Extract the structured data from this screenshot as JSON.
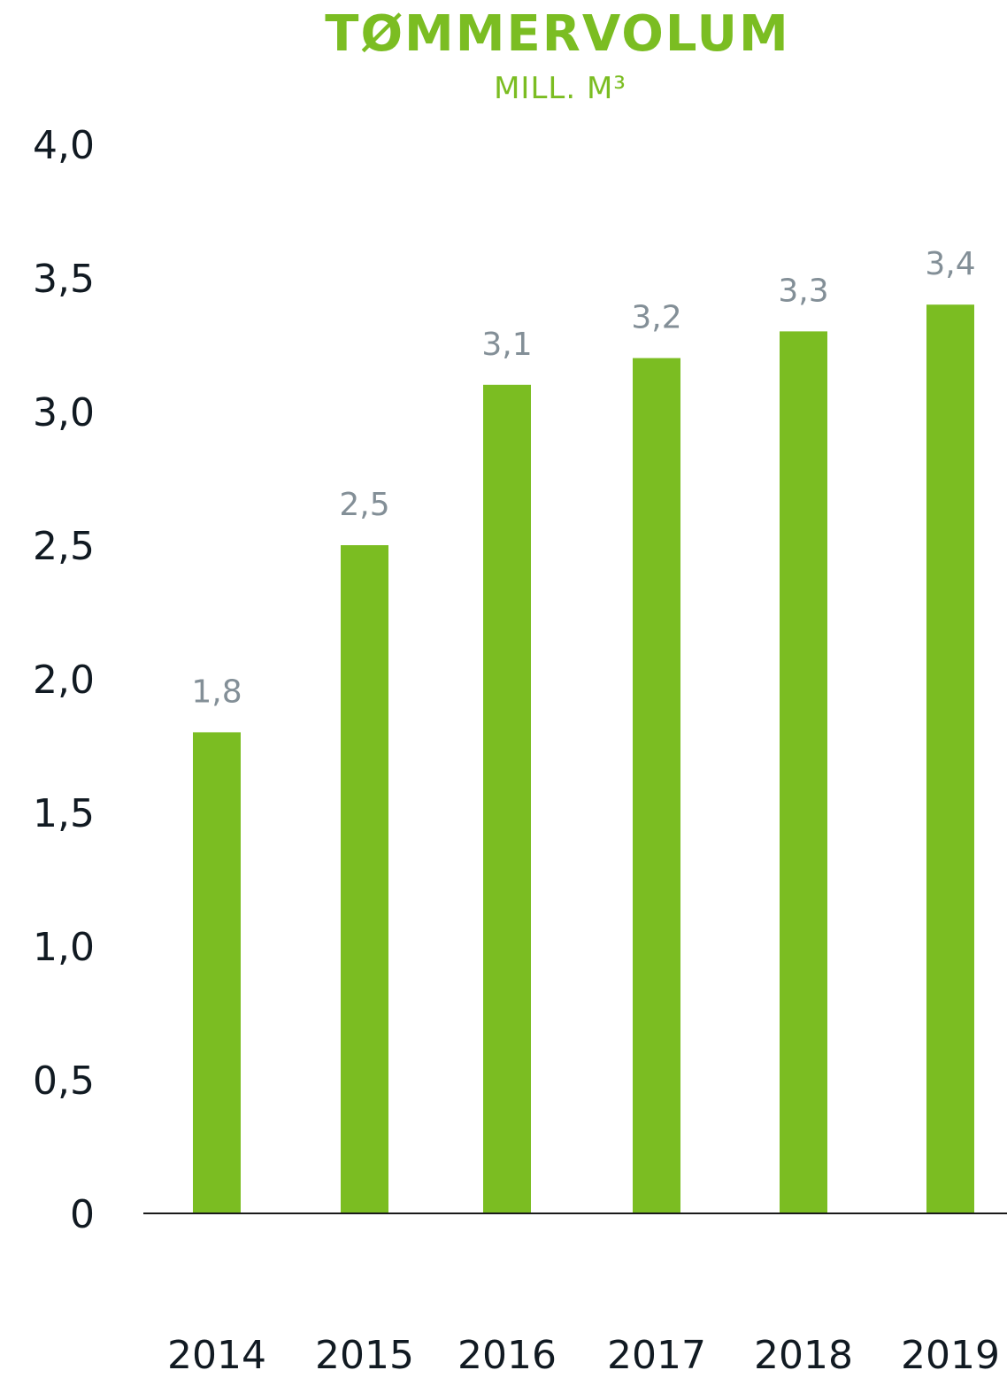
{
  "chart_data": {
    "type": "bar",
    "title": "TØMMERVOLUM",
    "subtitle": "MILL. M³",
    "categories": [
      "2014",
      "2015",
      "2016",
      "2017",
      "2018",
      "2019"
    ],
    "values": [
      1.8,
      2.5,
      3.1,
      3.2,
      3.3,
      3.4
    ],
    "value_labels": [
      "1,8",
      "2,5",
      "3,1",
      "3,2",
      "3,3",
      "3,4"
    ],
    "yticks": [
      0,
      0.5,
      1.0,
      1.5,
      2.0,
      2.5,
      3.0,
      3.5,
      4.0
    ],
    "ytick_labels": [
      "0",
      "0,5",
      "1,0",
      "1,5",
      "2,0",
      "2,5",
      "3,0",
      "3,5",
      "4,0"
    ],
    "ylim": [
      0,
      4.0
    ],
    "xlabel": "",
    "ylabel": "",
    "grid": false,
    "legend": false,
    "colors": {
      "bar": "#7bbd22",
      "title": "#7bbd22",
      "data_label": "#838f97",
      "axis_text": "#111a22",
      "axis_line": "#1a1a1a"
    }
  }
}
